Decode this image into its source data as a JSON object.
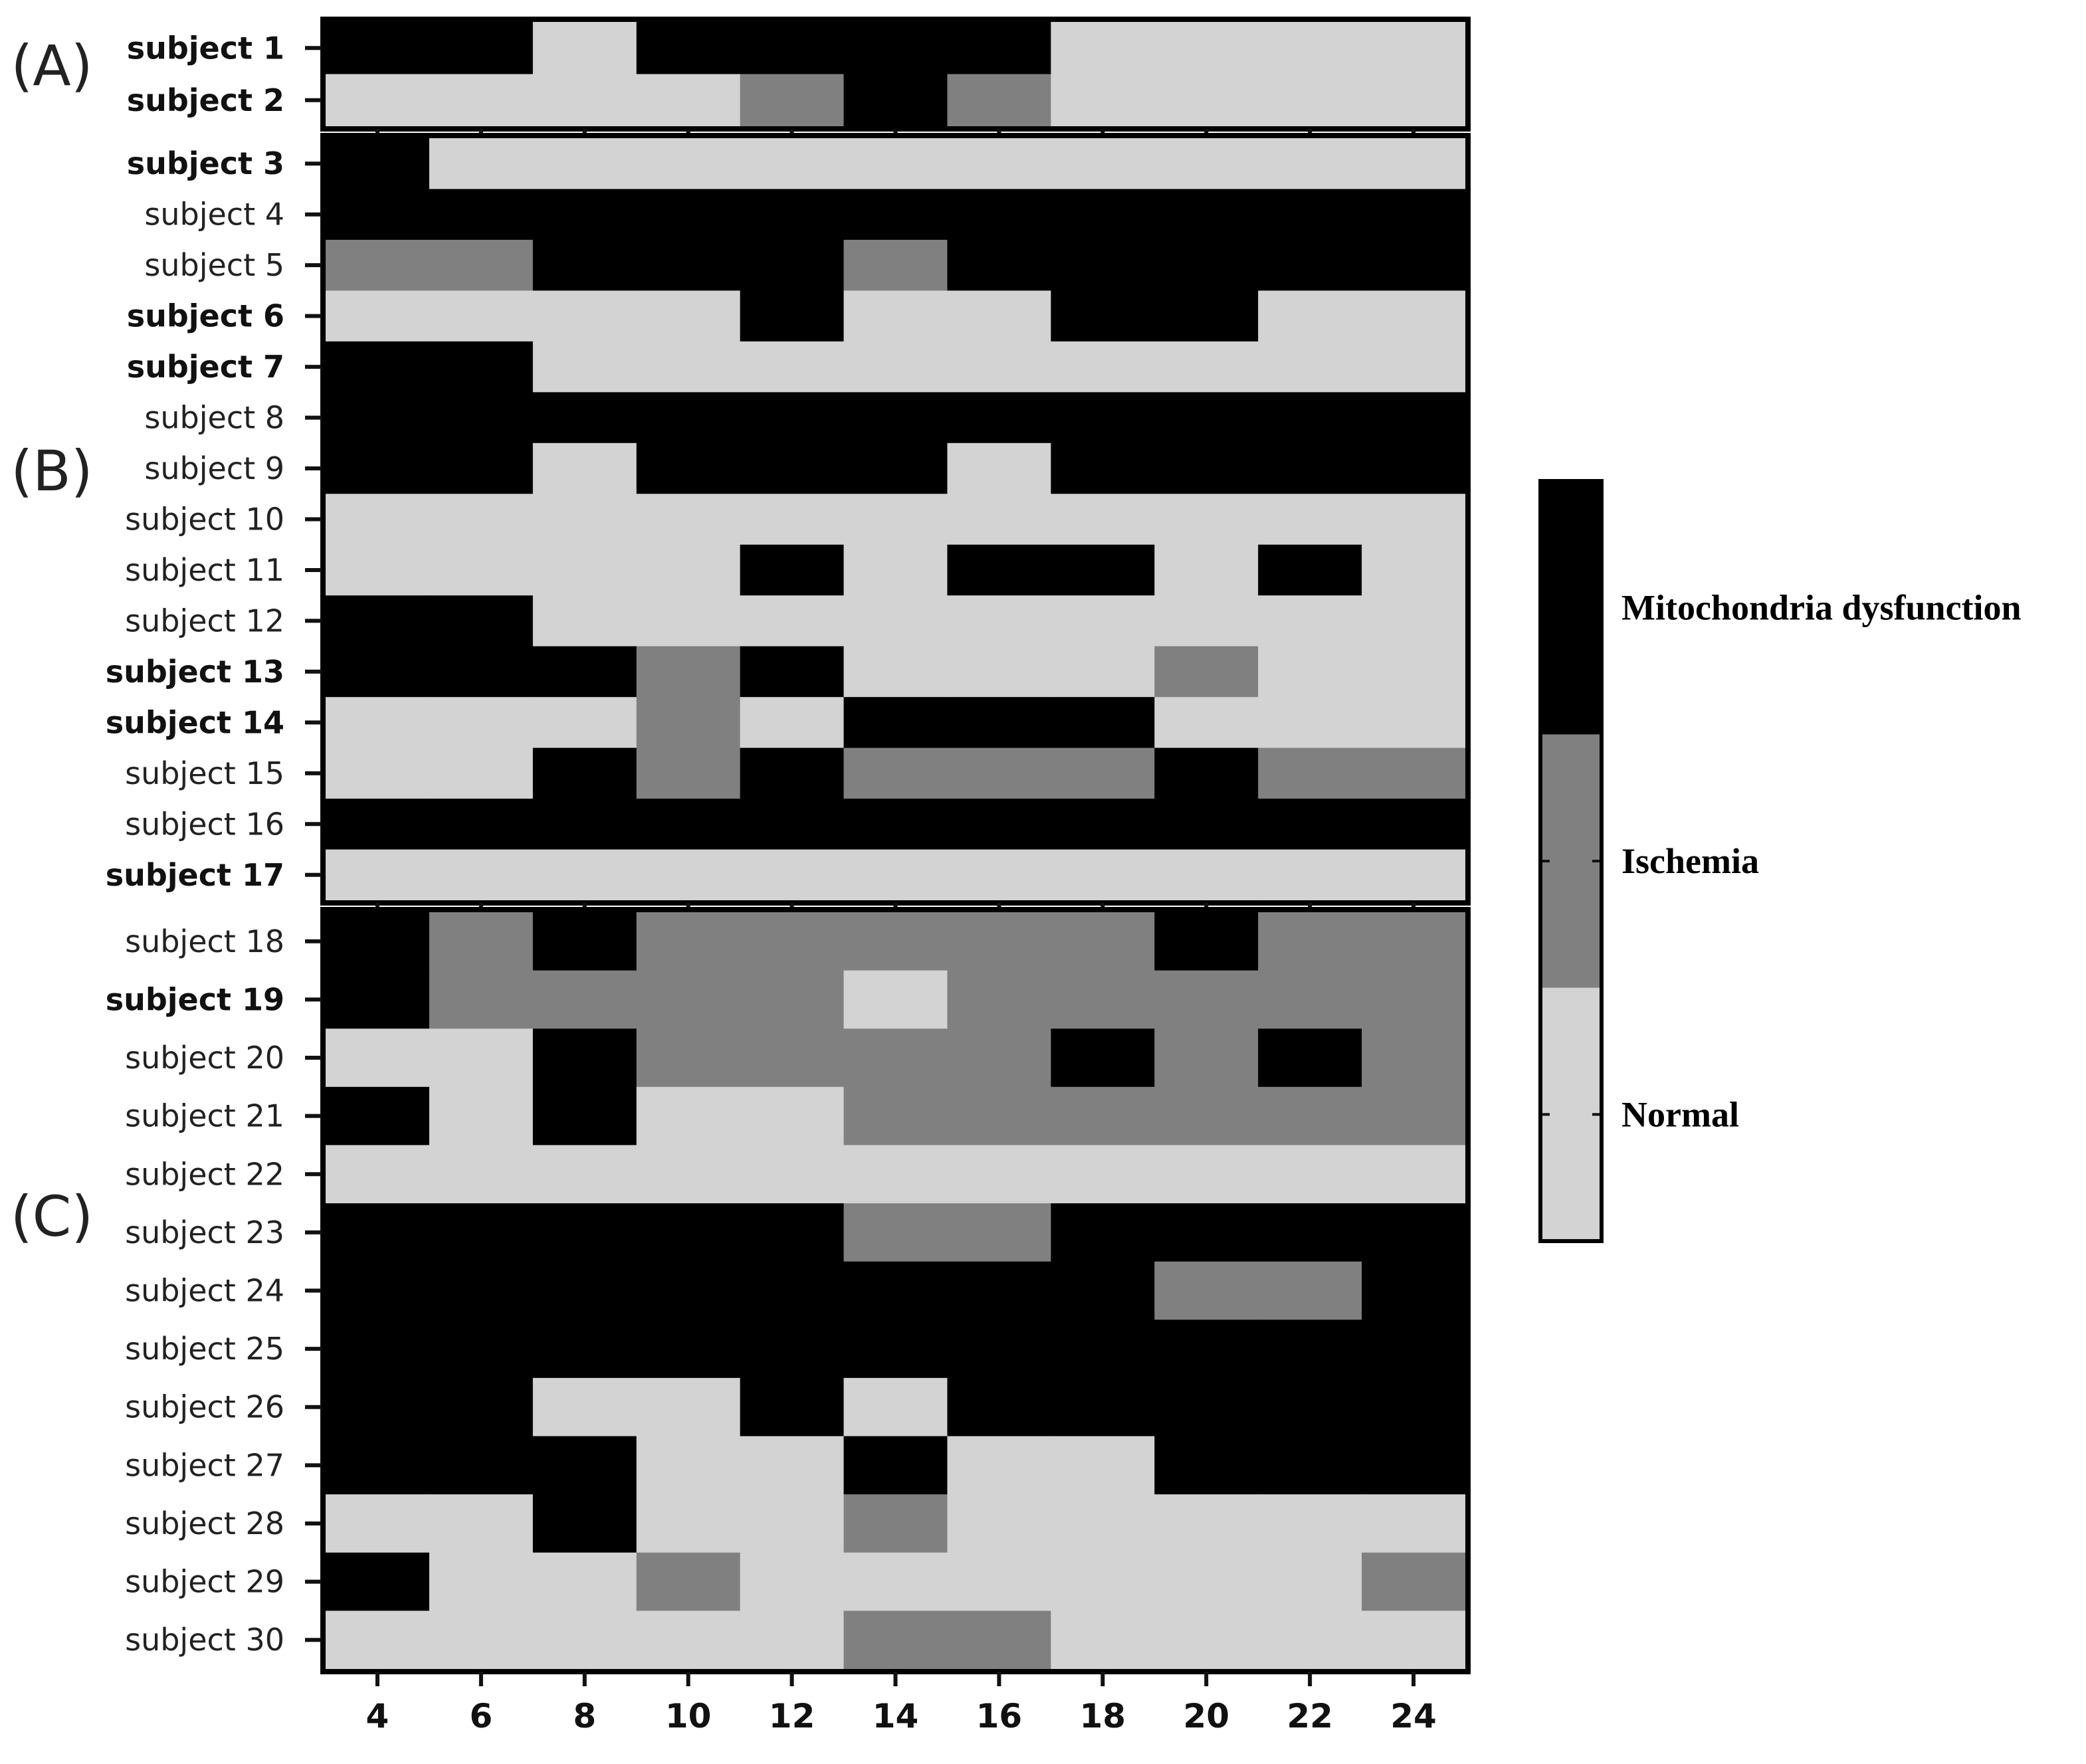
{
  "chart_data": {
    "type": "heatmap",
    "title": "",
    "xlabel": "",
    "ylabel": "",
    "x_ticks": [
      "4",
      "6",
      "8",
      "10",
      "12",
      "14",
      "16",
      "18",
      "20",
      "22",
      "24"
    ],
    "x_cell_centers": [
      4,
      6,
      8,
      10,
      12,
      14,
      16,
      18,
      20,
      22,
      24
    ],
    "xlim": [
      3,
      25
    ],
    "levels": [
      {
        "code": 0,
        "name": "Normal",
        "color": "#d3d3d3"
      },
      {
        "code": 1,
        "name": "Ischemia",
        "color": "#808080"
      },
      {
        "code": 2,
        "name": "Mitochondria dysfunction",
        "color": "#000000"
      }
    ],
    "legend": {
      "position": "right",
      "labels": [
        "Mitochondria dysfunction",
        "Ischemia",
        "Normal"
      ]
    },
    "panels": [
      {
        "label": "(A)",
        "rows": [
          {
            "name": "subject 1",
            "bold": true,
            "values": [
              2,
              2,
              0,
              2,
              2,
              2,
              2,
              0,
              0,
              0,
              0
            ]
          },
          {
            "name": "subject 2",
            "bold": true,
            "values": [
              0,
              0,
              0,
              0,
              1,
              2,
              1,
              0,
              0,
              0,
              0
            ]
          }
        ]
      },
      {
        "label": "(B)",
        "rows": [
          {
            "name": "subject 3",
            "bold": true,
            "values": [
              2,
              0,
              0,
              0,
              0,
              0,
              0,
              0,
              0,
              0,
              0
            ]
          },
          {
            "name": "subject 4",
            "bold": false,
            "values": [
              2,
              2,
              2,
              2,
              2,
              2,
              2,
              2,
              2,
              2,
              2
            ]
          },
          {
            "name": "subject 5",
            "bold": false,
            "values": [
              1,
              1,
              2,
              2,
              2,
              1,
              2,
              2,
              2,
              2,
              2
            ]
          },
          {
            "name": "subject 6",
            "bold": true,
            "values": [
              0,
              0,
              0,
              0,
              2,
              0,
              0,
              2,
              2,
              0,
              0
            ]
          },
          {
            "name": "subject 7",
            "bold": true,
            "values": [
              2,
              2,
              0,
              0,
              0,
              0,
              0,
              0,
              0,
              0,
              0
            ]
          },
          {
            "name": "subject 8",
            "bold": false,
            "values": [
              2,
              2,
              2,
              2,
              2,
              2,
              2,
              2,
              2,
              2,
              2
            ]
          },
          {
            "name": "subject 9",
            "bold": false,
            "values": [
              2,
              2,
              0,
              2,
              2,
              2,
              0,
              2,
              2,
              2,
              2
            ]
          },
          {
            "name": "subject 10",
            "bold": false,
            "values": [
              0,
              0,
              0,
              0,
              0,
              0,
              0,
              0,
              0,
              0,
              0
            ]
          },
          {
            "name": "subject 11",
            "bold": false,
            "values": [
              0,
              0,
              0,
              0,
              2,
              0,
              2,
              2,
              0,
              2,
              0
            ]
          },
          {
            "name": "subject 12",
            "bold": false,
            "values": [
              2,
              2,
              0,
              0,
              0,
              0,
              0,
              0,
              0,
              0,
              0
            ]
          },
          {
            "name": "subject 13",
            "bold": true,
            "values": [
              2,
              2,
              2,
              1,
              2,
              0,
              0,
              0,
              1,
              0,
              0
            ]
          },
          {
            "name": "subject 14",
            "bold": true,
            "values": [
              0,
              0,
              0,
              1,
              0,
              2,
              2,
              2,
              0,
              0,
              0
            ]
          },
          {
            "name": "subject 15",
            "bold": false,
            "values": [
              0,
              0,
              2,
              1,
              2,
              1,
              1,
              1,
              2,
              1,
              1
            ]
          },
          {
            "name": "subject 16",
            "bold": false,
            "values": [
              2,
              2,
              2,
              2,
              2,
              2,
              2,
              2,
              2,
              2,
              2
            ]
          },
          {
            "name": "subject 17",
            "bold": true,
            "values": [
              0,
              0,
              0,
              0,
              0,
              0,
              0,
              0,
              0,
              0,
              0
            ]
          }
        ]
      },
      {
        "label": "(C)",
        "rows": [
          {
            "name": "subject 18",
            "bold": false,
            "values": [
              2,
              1,
              2,
              1,
              1,
              1,
              1,
              1,
              2,
              1,
              1
            ]
          },
          {
            "name": "subject 19",
            "bold": true,
            "values": [
              2,
              1,
              1,
              1,
              1,
              0,
              1,
              1,
              1,
              1,
              1
            ]
          },
          {
            "name": "subject 20",
            "bold": false,
            "values": [
              0,
              0,
              2,
              1,
              1,
              1,
              1,
              2,
              1,
              2,
              1
            ]
          },
          {
            "name": "subject 21",
            "bold": false,
            "values": [
              2,
              0,
              2,
              0,
              0,
              1,
              1,
              1,
              1,
              1,
              1
            ]
          },
          {
            "name": "subject 22",
            "bold": false,
            "values": [
              0,
              0,
              0,
              0,
              0,
              0,
              0,
              0,
              0,
              0,
              0
            ]
          },
          {
            "name": "subject 23",
            "bold": false,
            "values": [
              2,
              2,
              2,
              2,
              2,
              1,
              1,
              2,
              2,
              2,
              2
            ]
          },
          {
            "name": "subject 24",
            "bold": false,
            "values": [
              2,
              2,
              2,
              2,
              2,
              2,
              2,
              2,
              1,
              1,
              2
            ]
          },
          {
            "name": "subject 25",
            "bold": false,
            "values": [
              2,
              2,
              2,
              2,
              2,
              2,
              2,
              2,
              2,
              2,
              2
            ]
          },
          {
            "name": "subject 26",
            "bold": false,
            "values": [
              2,
              2,
              0,
              0,
              2,
              0,
              2,
              2,
              2,
              2,
              2
            ]
          },
          {
            "name": "subject 27",
            "bold": false,
            "values": [
              2,
              2,
              2,
              0,
              0,
              2,
              0,
              0,
              2,
              2,
              2
            ]
          },
          {
            "name": "subject 28",
            "bold": false,
            "values": [
              0,
              0,
              2,
              0,
              0,
              1,
              0,
              0,
              0,
              0,
              0
            ]
          },
          {
            "name": "subject 29",
            "bold": false,
            "values": [
              2,
              0,
              0,
              1,
              0,
              0,
              0,
              0,
              0,
              0,
              1
            ]
          },
          {
            "name": "subject 30",
            "bold": false,
            "values": [
              0,
              0,
              0,
              0,
              0,
              1,
              1,
              0,
              0,
              0,
              0
            ]
          }
        ]
      }
    ]
  }
}
